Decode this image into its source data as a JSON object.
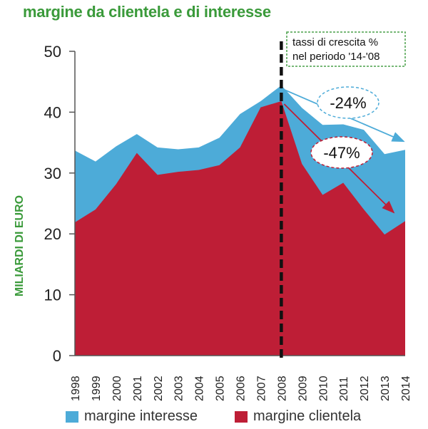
{
  "title": "margine da clientela e di interesse",
  "colors": {
    "title": "#3a9a3a",
    "interesse": "#4dabd8",
    "clientela": "#be1e36",
    "axis": "#555555",
    "annotation_border": "#4aa04a",
    "arrow_interesse": "#4dabd8",
    "arrow_clientela": "#be1e36",
    "divider": "#111111"
  },
  "annotation": {
    "box_line1": "tassi di crescita %",
    "box_line2": "nel periodo '14-'08",
    "interesse_growth": "-24%",
    "clientela_growth": "-47%"
  },
  "chart_data": {
    "type": "area",
    "title": "margine da clientela e di interesse",
    "xlabel": "",
    "ylabel": "MILIARDI DI EURO",
    "ylim": [
      0,
      50
    ],
    "yticks": [
      0,
      10,
      20,
      30,
      40,
      50
    ],
    "categories": [
      "1998",
      "1999",
      "2000",
      "2001",
      "2002",
      "2003",
      "2004",
      "2005",
      "2006",
      "2007",
      "2008",
      "2009",
      "2010",
      "2011",
      "2012",
      "2013",
      "2014"
    ],
    "series": [
      {
        "name": "margine interesse",
        "values": [
          33.7,
          31.9,
          34.4,
          36.4,
          34.2,
          33.9,
          34.2,
          35.8,
          39.7,
          41.8,
          44.4,
          40.7,
          37.9,
          38.0,
          37.1,
          33.1,
          33.8
        ]
      },
      {
        "name": "margine clientela",
        "values": [
          21.9,
          24.0,
          28.2,
          33.3,
          29.7,
          30.2,
          30.5,
          31.3,
          34.2,
          40.8,
          41.8,
          31.5,
          26.4,
          28.4,
          24.0,
          19.9,
          22.1
        ]
      }
    ],
    "marker_year": "2008",
    "legend": [
      "margine interesse",
      "margine clientela"
    ],
    "legend_position": "bottom"
  }
}
